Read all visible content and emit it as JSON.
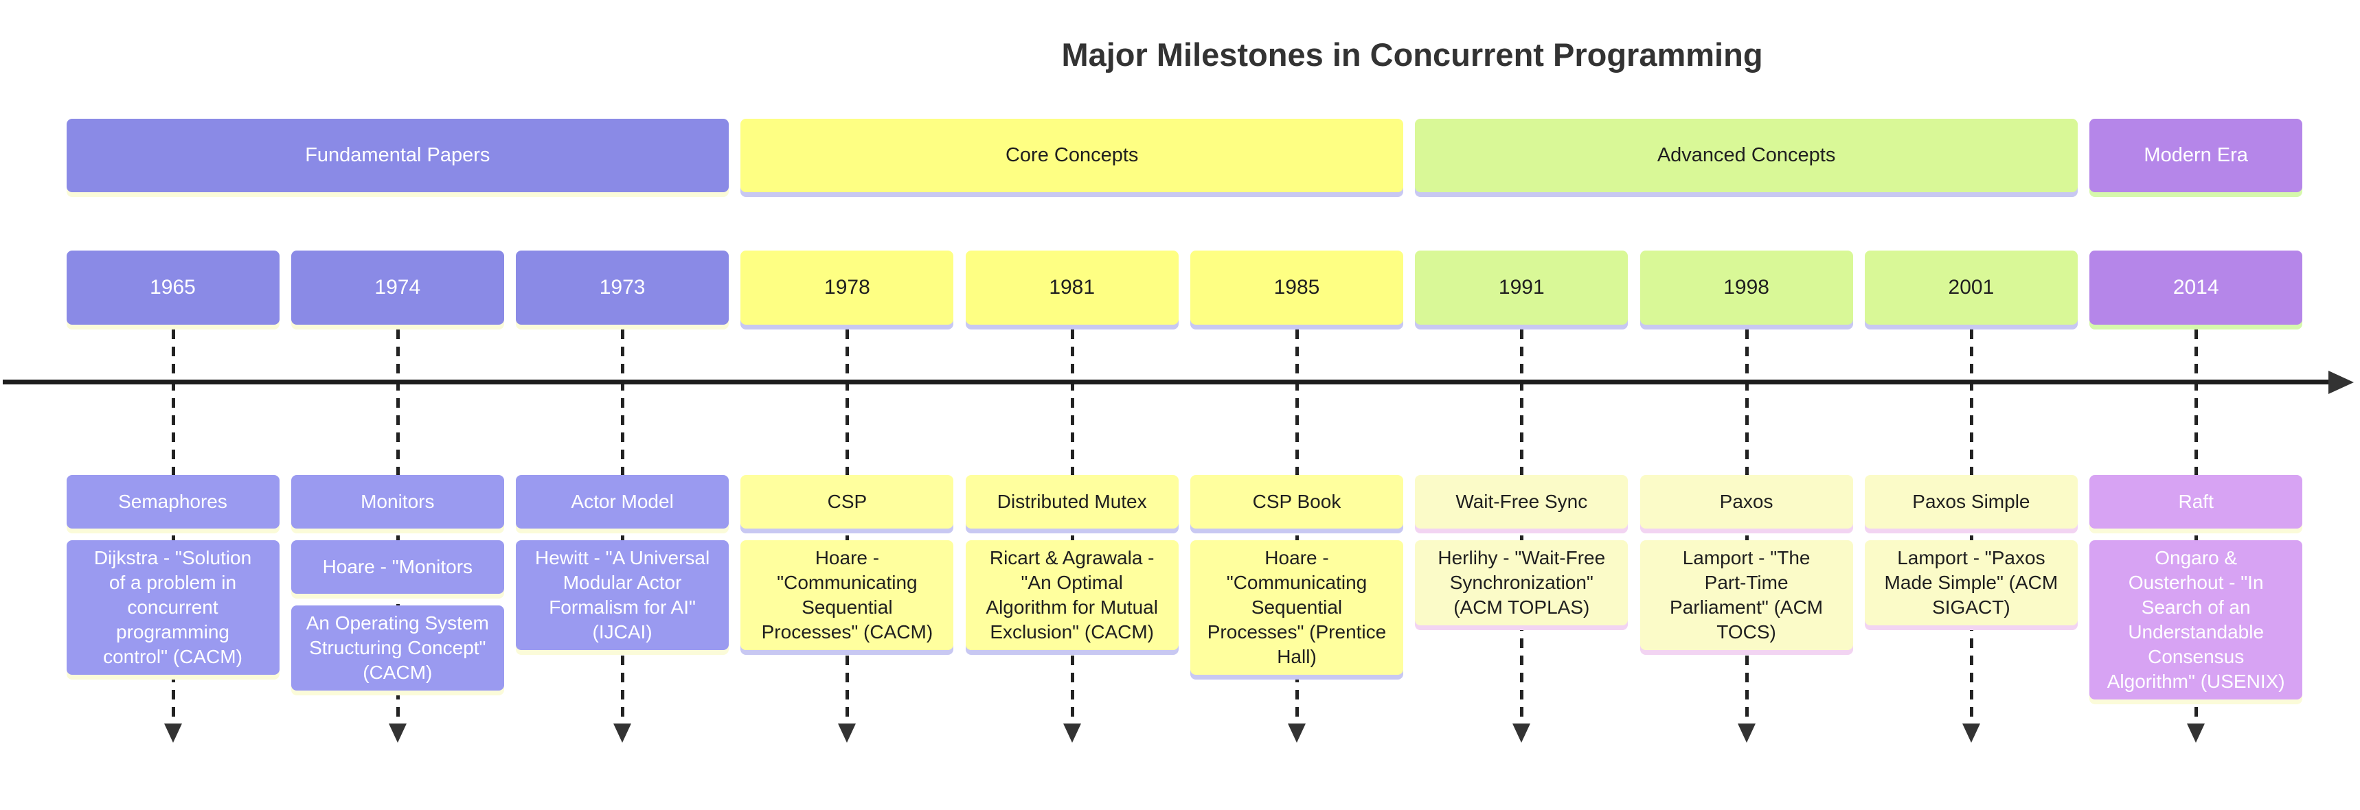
{
  "title": "Major Milestones in Concurrent Programming",
  "sections": [
    {
      "label": "Fundamental Papers",
      "theme": "purple",
      "start": 0,
      "span": 3
    },
    {
      "label": "Core Concepts",
      "theme": "yellow",
      "start": 3,
      "span": 3
    },
    {
      "label": "Advanced Concepts",
      "theme": "green",
      "start": 6,
      "span": 3
    },
    {
      "label": "Modern Era",
      "theme": "violet",
      "start": 9,
      "span": 1
    }
  ],
  "columns": [
    {
      "year": "1965",
      "theme": "purple",
      "events": [
        "Semaphores",
        "Dijkstra - \"Solution\nof a problem in\nconcurrent\nprogramming\ncontrol\" (CACM)"
      ]
    },
    {
      "year": "1974",
      "theme": "purple",
      "events": [
        "Monitors",
        "Hoare - \"Monitors",
        "An Operating System\nStructuring Concept\"\n(CACM)"
      ]
    },
    {
      "year": "1973",
      "theme": "purple",
      "events": [
        "Actor Model",
        "Hewitt - \"A Universal\nModular Actor\nFormalism for AI\"\n(IJCAI)"
      ]
    },
    {
      "year": "1978",
      "theme": "yellow",
      "events": [
        "CSP",
        "Hoare -\n\"Communicating\nSequential\nProcesses\" (CACM)"
      ]
    },
    {
      "year": "1981",
      "theme": "yellow",
      "events": [
        "Distributed Mutex",
        "Ricart & Agrawala -\n\"An Optimal\nAlgorithm for Mutual\nExclusion\" (CACM)"
      ]
    },
    {
      "year": "1985",
      "theme": "yellow",
      "events": [
        "CSP Book",
        "Hoare -\n\"Communicating\nSequential\nProcesses\" (Prentice\nHall)"
      ]
    },
    {
      "year": "1991",
      "theme": "green",
      "events": [
        "Wait-Free Sync",
        "Herlihy - \"Wait-Free\nSynchronization\"\n(ACM TOPLAS)"
      ]
    },
    {
      "year": "1998",
      "theme": "green",
      "events": [
        "Paxos",
        "Lamport - \"The\nPart-Time\nParliament\" (ACM\nTOCS)"
      ]
    },
    {
      "year": "2001",
      "theme": "green",
      "events": [
        "Paxos Simple",
        "Lamport - \"Paxos\nMade Simple\" (ACM\nSIGACT)"
      ]
    },
    {
      "year": "2014",
      "theme": "violet",
      "events": [
        "Raft",
        "Ongaro &\nOusterhout - \"In\nSearch of an\nUnderstandable\nConsensus\nAlgorithm\" (USENIX)"
      ]
    }
  ],
  "colors": {
    "axis": "#1d1d1d",
    "title_text": "#333333",
    "connector": "#222222",
    "themes": {
      "purple": {
        "band": "#8a8ae6",
        "band_text": "#ffffff",
        "event": "#9a9af0",
        "event_text": "#ffffff",
        "band_strip": "#fbfbd9",
        "event_strip": "#fbfbd9"
      },
      "yellow": {
        "band": "#feff83",
        "band_text": "#1f1f1f",
        "event": "#ffff9e",
        "event_text": "#1f1f1f",
        "band_strip": "#c8c8f2",
        "event_strip": "#c8c8f2"
      },
      "green": {
        "band": "#d9f897",
        "band_text": "#1f1f1f",
        "event": "#fbfbc8",
        "event_text": "#1f1f1f",
        "band_strip": "#c8c8f2",
        "event_strip": "#f2d4f2"
      },
      "violet": {
        "band": "#b586e9",
        "band_text": "#ffffff",
        "event": "#d7a3f3",
        "event_text": "#ffffff",
        "band_strip": "#d6f8ac",
        "event_strip": "#fbfbd9"
      }
    }
  }
}
